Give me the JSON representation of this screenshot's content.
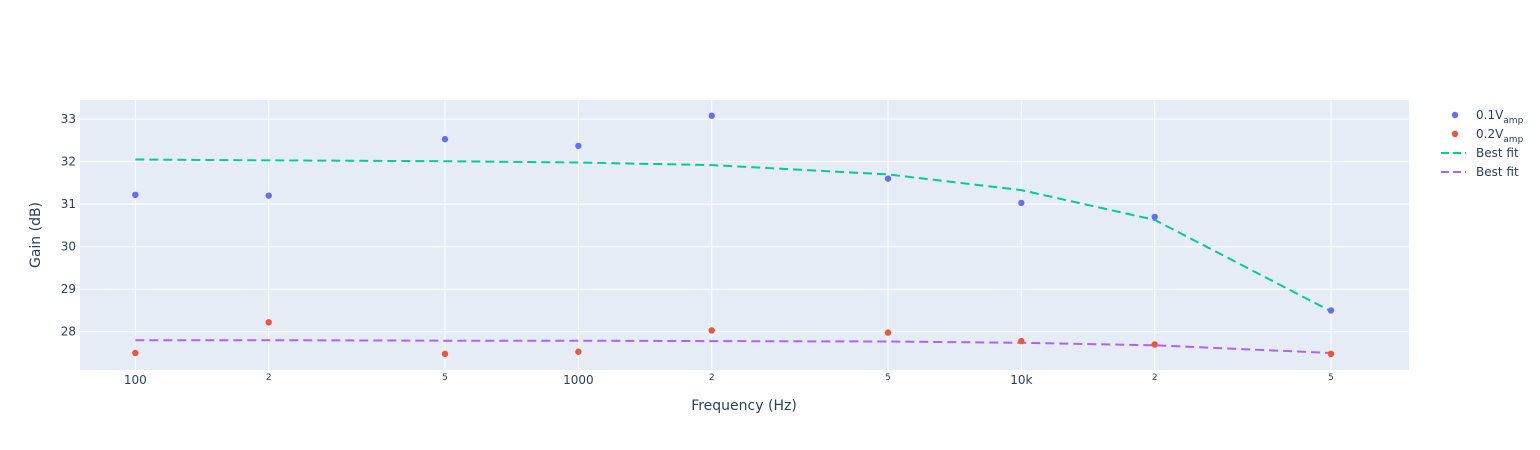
{
  "chart_data": {
    "type": "scatter",
    "xlabel": "Frequency (Hz)",
    "ylabel": "Gain (dB)",
    "x_scale": "log",
    "xlim": [
      75,
      75000
    ],
    "ylim": [
      27.1,
      33.45
    ],
    "x_ticks": [
      {
        "value": 100,
        "label": "100",
        "major": true
      },
      {
        "value": 200,
        "label": "2",
        "major": false
      },
      {
        "value": 500,
        "label": "5",
        "major": false
      },
      {
        "value": 1000,
        "label": "1000",
        "major": true
      },
      {
        "value": 2000,
        "label": "2",
        "major": false
      },
      {
        "value": 5000,
        "label": "5",
        "major": false
      },
      {
        "value": 10000,
        "label": "10k",
        "major": true
      },
      {
        "value": 20000,
        "label": "2",
        "major": false
      },
      {
        "value": 50000,
        "label": "5",
        "major": false
      }
    ],
    "y_ticks": [
      {
        "value": 28,
        "label": "28"
      },
      {
        "value": 29,
        "label": "29"
      },
      {
        "value": 30,
        "label": "30"
      },
      {
        "value": 31,
        "label": "31"
      },
      {
        "value": 32,
        "label": "32"
      },
      {
        "value": 33,
        "label": "33"
      }
    ],
    "grid": true,
    "legend_position": "right",
    "series": [
      {
        "name_main": "0.1V",
        "name_sub": "amp",
        "mode": "markers",
        "color": "#636efa",
        "x": [
          100,
          200,
          500,
          1000,
          2000,
          5000,
          10000,
          20000,
          50000
        ],
        "y": [
          31.22,
          31.2,
          32.53,
          32.37,
          33.08,
          31.6,
          31.03,
          30.7,
          28.5
        ]
      },
      {
        "name_main": "0.2V",
        "name_sub": "amp",
        "mode": "markers",
        "color": "#ef553b",
        "x": [
          100,
          200,
          500,
          1000,
          2000,
          5000,
          10000,
          20000,
          50000
        ],
        "y": [
          27.5,
          28.22,
          27.48,
          27.53,
          28.03,
          27.98,
          27.78,
          27.7,
          27.48
        ]
      },
      {
        "name_main": "Best fit",
        "name_sub": "",
        "mode": "dash",
        "color": "#00cc96",
        "x": [
          100,
          200,
          500,
          1000,
          2000,
          5000,
          10000,
          20000,
          50000
        ],
        "y": [
          32.05,
          32.03,
          32.01,
          31.98,
          31.92,
          31.7,
          31.33,
          30.63,
          28.48
        ]
      },
      {
        "name_main": "Best fit",
        "name_sub": "",
        "mode": "dash",
        "color": "#ab63fa",
        "x": [
          100,
          200,
          500,
          1000,
          2000,
          5000,
          10000,
          20000,
          50000
        ],
        "y": [
          27.8,
          27.8,
          27.79,
          27.79,
          27.78,
          27.77,
          27.74,
          27.68,
          27.5
        ]
      }
    ]
  }
}
